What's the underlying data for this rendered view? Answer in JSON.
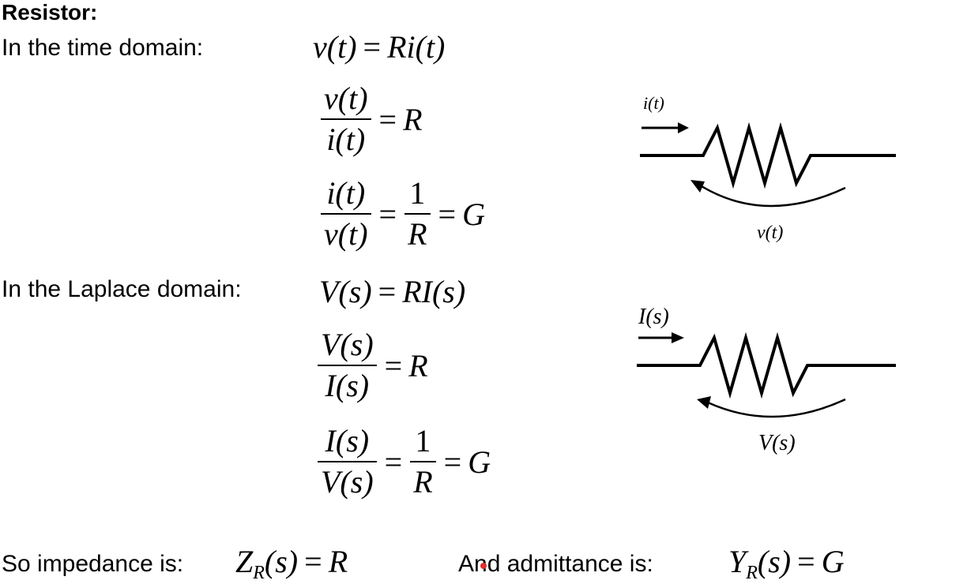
{
  "heading": "Resistor:",
  "time_domain": {
    "label": "In the time domain:",
    "eq1": {
      "lhs": "v(t)",
      "op": "=",
      "rhs": "Ri(t)"
    },
    "eq2": {
      "num": "v(t)",
      "den": "i(t)",
      "op": "=",
      "rhs": "R"
    },
    "eq3": {
      "num": "i(t)",
      "den": "v(t)",
      "op1": "=",
      "num2": "1",
      "den2": "R",
      "op2": "=",
      "rhs": "G"
    },
    "diagram": {
      "current_label": "i(t)",
      "voltage_label": "v(t)"
    }
  },
  "laplace_domain": {
    "label": "In the Laplace domain:",
    "eq1": {
      "lhs": "V(s)",
      "op": "=",
      "rhs": "RI(s)"
    },
    "eq2": {
      "num": "V(s)",
      "den": "I(s)",
      "op": "=",
      "rhs": "R"
    },
    "eq3": {
      "num": "I(s)",
      "den": "V(s)",
      "op1": "=",
      "num2": "1",
      "den2": "R",
      "op2": "=",
      "rhs": "G"
    },
    "diagram": {
      "current_label": "I(s)",
      "voltage_label": "V(s)"
    }
  },
  "impedance": {
    "label": "So impedance is:",
    "symbol": "Z",
    "subscript": "R",
    "arg": "(s)",
    "op": "=",
    "rhs": "R"
  },
  "admittance": {
    "label": "And admittance is:",
    "symbol": "Y",
    "subscript": "R",
    "arg": "(s)",
    "op": "=",
    "rhs": "G"
  },
  "colors": {
    "text": "#000000",
    "background": "#ffffff",
    "cursor_dot": "#e03030"
  }
}
